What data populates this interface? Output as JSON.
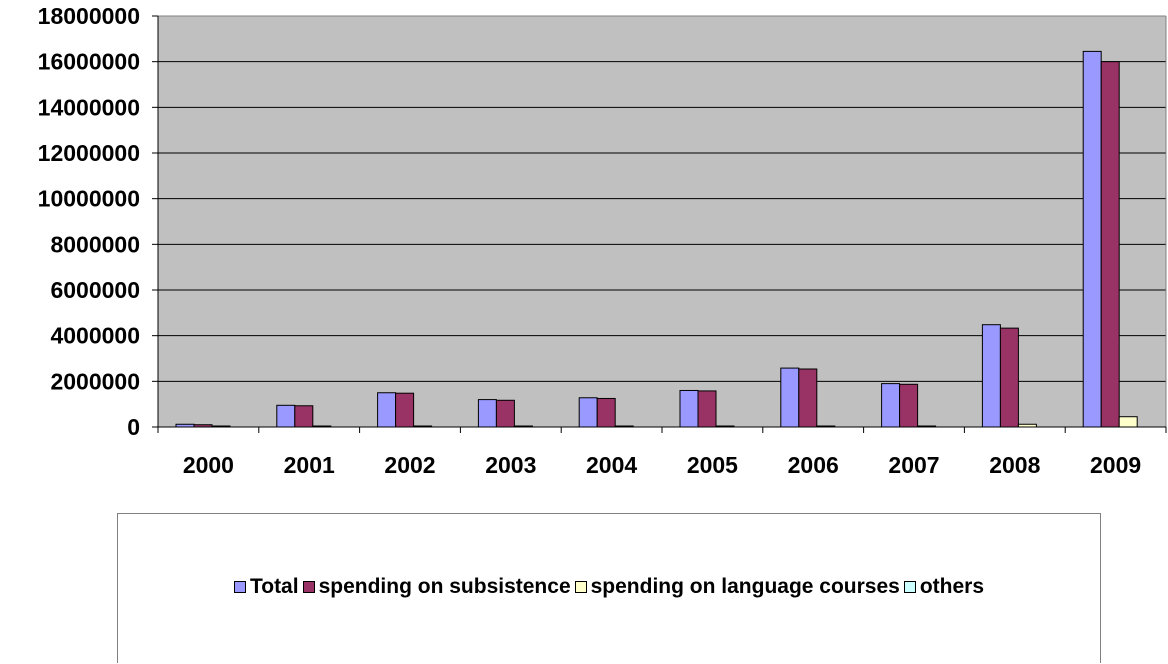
{
  "chart_data": {
    "type": "bar",
    "title": "",
    "xlabel": "",
    "ylabel": "",
    "categories": [
      "2000",
      "2001",
      "2002",
      "2003",
      "2004",
      "2005",
      "2006",
      "2007",
      "2008",
      "2009"
    ],
    "ylim": [
      0,
      18000000
    ],
    "yticks": [
      "0",
      "2000000",
      "4000000",
      "6000000",
      "8000000",
      "10000000",
      "12000000",
      "14000000",
      "16000000",
      "18000000"
    ],
    "grid": true,
    "legend_position": "bottom",
    "plot_background": "#C0C0C0",
    "series": [
      {
        "name": "Total",
        "color": "#9999FF",
        "values": [
          120000,
          950000,
          1500000,
          1200000,
          1280000,
          1600000,
          2580000,
          1900000,
          4480000,
          16450000
        ]
      },
      {
        "name": "spending on subsistence",
        "color": "#993366",
        "values": [
          100000,
          930000,
          1480000,
          1170000,
          1250000,
          1580000,
          2540000,
          1870000,
          4330000,
          16000000
        ]
      },
      {
        "name": "spending on language courses",
        "color": "#FFFFCC",
        "values": [
          5000,
          8000,
          10000,
          10000,
          15000,
          30000,
          20000,
          20000,
          120000,
          450000
        ]
      },
      {
        "name": "others",
        "color": "#CCFFFF",
        "values": [
          0,
          0,
          0,
          0,
          0,
          0,
          0,
          0,
          0,
          0
        ]
      }
    ]
  }
}
